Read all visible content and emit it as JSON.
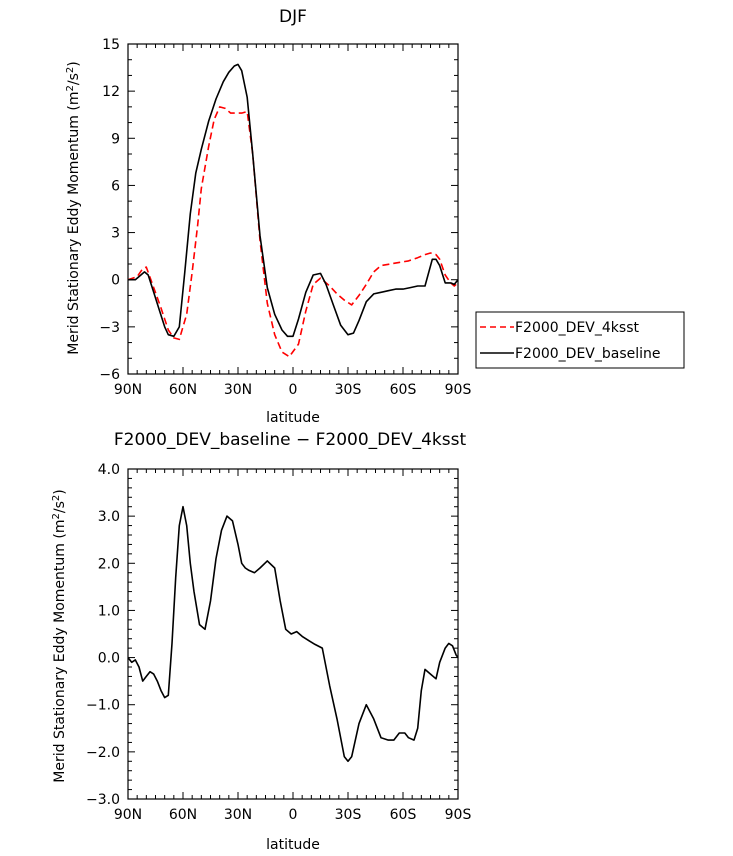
{
  "chart_data": [
    {
      "type": "line",
      "title": "DJF",
      "xlabel": "latitude",
      "ylabel": "Merid Stationary Eddy Momentum (m²/s²)",
      "ylabel_main": "Merid Stationary Eddy Momentum (m",
      "ylabel_sup": "2",
      "ylabel_mid": "/s",
      "ylabel_end": ")",
      "xlim": [
        90,
        -90
      ],
      "ylim": [
        -6,
        15
      ],
      "xticks": [
        90,
        60,
        30,
        0,
        -30,
        -60,
        -90
      ],
      "xticklabels": [
        "90N",
        "60N",
        "30N",
        "0",
        "30S",
        "60S",
        "90S"
      ],
      "yticks": [
        -6,
        -3,
        0,
        3,
        6,
        9,
        12,
        15
      ],
      "yticklabels": [
        "−6",
        "−3",
        "0",
        "3",
        "6",
        "9",
        "12",
        "15"
      ],
      "legend": "right",
      "series": [
        {
          "name": "F2000_DEV_4ksst",
          "color": "#ff0000",
          "dash": "dashed",
          "x": [
            90,
            85,
            82,
            80,
            76,
            72,
            68,
            65,
            62,
            58,
            55,
            52,
            50,
            46,
            43,
            40,
            37,
            34,
            31,
            28,
            25,
            22,
            18,
            14,
            10,
            6,
            2,
            -3,
            -7,
            -11,
            -15,
            -20,
            -24,
            -28,
            -32,
            -36,
            -40,
            -44,
            -48,
            -53,
            -58,
            -63,
            -68,
            -72,
            -75,
            -78,
            -80,
            -83,
            -86,
            -88,
            -90
          ],
          "y": [
            0,
            0.2,
            0.7,
            0.8,
            -0.5,
            -1.8,
            -3.2,
            -3.7,
            -3.8,
            -2.2,
            0.5,
            3.5,
            5.8,
            8.5,
            10.2,
            11.0,
            10.9,
            10.6,
            10.6,
            10.6,
            10.7,
            8.0,
            2.5,
            -1.5,
            -3.5,
            -4.6,
            -4.9,
            -4.1,
            -2.0,
            -0.3,
            0.1,
            -0.4,
            -0.9,
            -1.3,
            -1.6,
            -1.0,
            -0.3,
            0.5,
            0.9,
            1.0,
            1.1,
            1.2,
            1.4,
            1.6,
            1.7,
            1.6,
            1.3,
            0.3,
            -0.2,
            -0.4,
            -0.2
          ]
        },
        {
          "name": "F2000_DEV_baseline",
          "color": "#000000",
          "dash": "solid",
          "x": [
            90,
            86,
            84,
            81,
            79,
            76,
            73,
            70,
            68,
            65,
            62,
            59,
            56,
            53,
            50,
            46,
            42,
            38,
            35,
            32,
            30,
            28,
            25,
            22,
            18,
            14,
            10,
            6,
            3,
            0,
            -3,
            -7,
            -11,
            -15,
            -18,
            -22,
            -26,
            -30,
            -33,
            -36,
            -40,
            -44,
            -48,
            -52,
            -56,
            -60,
            -64,
            -68,
            -72,
            -76,
            -78,
            -80,
            -83,
            -86,
            -88,
            -90
          ],
          "y": [
            0,
            0,
            0.2,
            0.5,
            0.3,
            -0.8,
            -1.9,
            -3.0,
            -3.5,
            -3.6,
            -3.0,
            0.5,
            4.2,
            6.8,
            8.3,
            10.1,
            11.5,
            12.6,
            13.2,
            13.6,
            13.7,
            13.3,
            11.6,
            8.0,
            2.8,
            -0.5,
            -2.2,
            -3.2,
            -3.6,
            -3.6,
            -2.5,
            -0.8,
            0.3,
            0.4,
            -0.3,
            -1.6,
            -2.9,
            -3.5,
            -3.4,
            -2.6,
            -1.4,
            -0.9,
            -0.8,
            -0.7,
            -0.6,
            -0.6,
            -0.5,
            -0.4,
            -0.4,
            1.3,
            1.3,
            0.9,
            -0.2,
            -0.2,
            -0.3,
            0
          ]
        }
      ]
    },
    {
      "type": "line",
      "title": "F2000_DEV_baseline − F2000_DEV_4ksst",
      "xlabel": "latitude",
      "ylabel": "Merid Stationary Eddy Momentum (m²/s²)",
      "ylabel_main": "Merid Stationary Eddy Momentum (m",
      "ylabel_sup": "2",
      "ylabel_mid": "/s",
      "ylabel_end": ")",
      "xlim": [
        90,
        -90
      ],
      "ylim": [
        -3,
        4
      ],
      "xticks": [
        90,
        60,
        30,
        0,
        -30,
        -60,
        -90
      ],
      "xticklabels": [
        "90N",
        "60N",
        "30N",
        "0",
        "30S",
        "60S",
        "90S"
      ],
      "yticks": [
        -3,
        -2,
        -1,
        0,
        1,
        2,
        3,
        4
      ],
      "yticklabels": [
        "−3.0",
        "−2.0",
        "−1.0",
        "0.0",
        "1.0",
        "2.0",
        "3.0",
        "4.0"
      ],
      "series": [
        {
          "color": "#000000",
          "dash": "solid",
          "x": [
            90,
            88,
            86,
            84,
            82,
            80,
            78,
            76,
            74,
            72,
            70,
            68,
            66,
            64,
            62,
            60,
            58,
            56,
            54,
            51,
            48,
            45,
            42,
            39,
            36,
            33,
            30,
            28,
            26,
            24,
            21,
            18,
            14,
            10,
            7,
            4,
            1,
            -2,
            -5,
            -9,
            -12,
            -16,
            -20,
            -24,
            -28,
            -30,
            -32,
            -36,
            -40,
            -44,
            -48,
            -52,
            -55,
            -58,
            -61,
            -63,
            -66,
            -68,
            -70,
            -72,
            -75,
            -78,
            -80,
            -83,
            -85,
            -87,
            -89,
            -90
          ],
          "y": [
            0,
            -0.1,
            -0.05,
            -0.2,
            -0.5,
            -0.4,
            -0.3,
            -0.35,
            -0.5,
            -0.7,
            -0.85,
            -0.8,
            0.3,
            1.7,
            2.8,
            3.2,
            2.8,
            2.0,
            1.4,
            0.7,
            0.6,
            1.2,
            2.1,
            2.7,
            3.0,
            2.9,
            2.4,
            2.0,
            1.9,
            1.85,
            1.8,
            1.9,
            2.05,
            1.9,
            1.2,
            0.6,
            0.5,
            0.55,
            0.45,
            0.35,
            0.28,
            0.2,
            -0.6,
            -1.3,
            -2.1,
            -2.2,
            -2.1,
            -1.4,
            -1.0,
            -1.3,
            -1.7,
            -1.75,
            -1.75,
            -1.6,
            -1.6,
            -1.7,
            -1.75,
            -1.5,
            -0.7,
            -0.25,
            -0.35,
            -0.45,
            -0.1,
            0.2,
            0.3,
            0.25,
            0.05,
            0
          ]
        }
      ]
    }
  ]
}
